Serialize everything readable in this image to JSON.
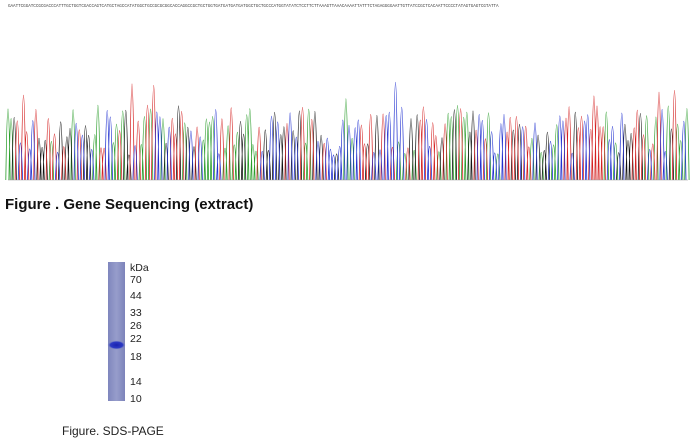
{
  "sequence": "GAATTCGGATCCGCGACCCATTTGCTGGTCGACCAGTCATGCTAGCCATATGGCTGCCGCGCGGCACCAGGCCGCTGCTGGTGATGATGATGATGGCTGCTGCCCATGGTATATCTCCTTCTTAAAGTTAAACAAAATTATTTCTAGAGGGGAATTGTTATCCGCTCACAATTCCCCTATAGTGAGTCGTATTA",
  "sequencing_caption": "Figure . Gene Sequencing (extract)",
  "gel": {
    "unit": "kDa",
    "markers": [
      "70",
      "44",
      "33",
      "26",
      "22",
      "18",
      "14",
      "10"
    ]
  },
  "gel_caption": "Figure. SDS-PAGE"
}
